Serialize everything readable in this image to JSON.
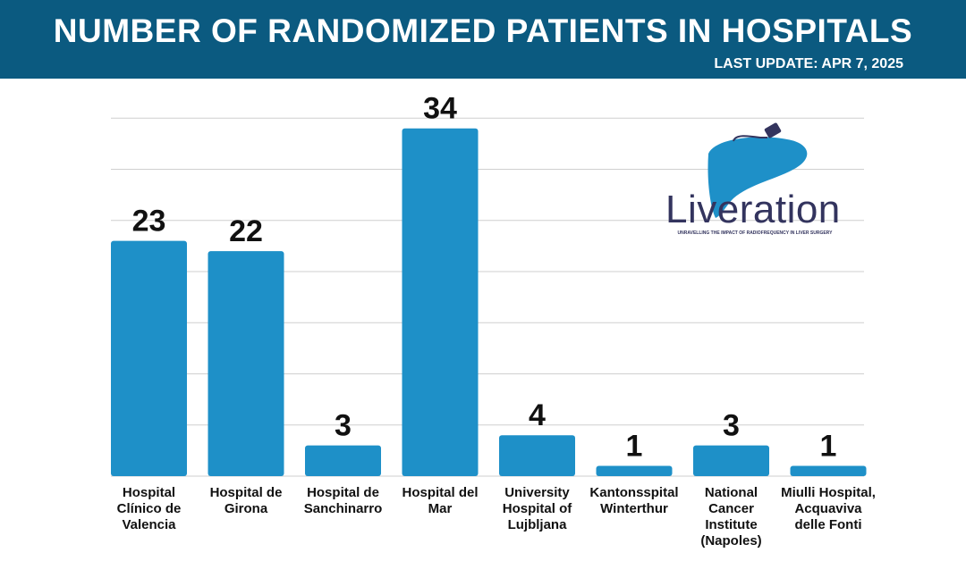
{
  "header": {
    "title": "NUMBER OF RANDOMIZED PATIENTS IN HOSPITALS",
    "subtitle": "LAST UPDATE: APR 7, 2025"
  },
  "logo": {
    "name": "Liveration",
    "tagline": "UNRAVELLING THE IMPACT OF RADIOFREQUENCY IN LIVER SURGERY",
    "icon": "liver-with-probe-icon",
    "color": "#33345e",
    "liver_color": "#1e90c8"
  },
  "colors": {
    "bar": "#1e90c8",
    "header": "#0b5a80",
    "grid": "#cfcfcf"
  },
  "chart_data": {
    "type": "bar",
    "title": "NUMBER OF RANDOMIZED PATIENTS IN HOSPITALS",
    "subtitle": "LAST UPDATE: APR 7, 2025",
    "categories": [
      "Hospital Clínico de Valencia",
      "Hospital de Girona",
      "Hospital de Sanchinarro",
      "Hospital del Mar",
      "University Hospital of Lujbljana",
      "Kantonsspital Winterthur",
      "National Cancer Institute (Napoles)",
      "Miulli Hospital, Acquaviva delle Fonti"
    ],
    "values": [
      23,
      22,
      3,
      34,
      4,
      1,
      3,
      1
    ],
    "data_labels": [
      "23",
      "22",
      "3",
      "34",
      "4",
      "1",
      "3",
      "1"
    ],
    "xlabel": "",
    "ylabel": "",
    "ylim": [
      0,
      35
    ],
    "grid": true,
    "legend": "none"
  }
}
